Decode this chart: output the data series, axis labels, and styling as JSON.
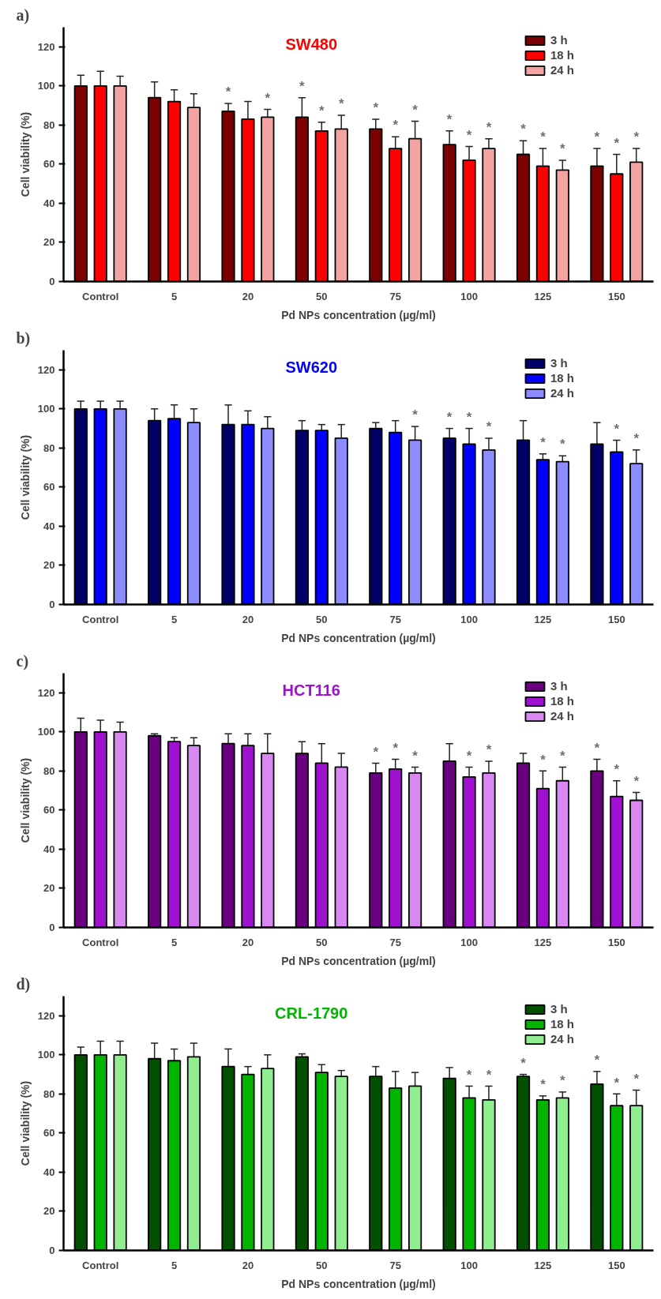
{
  "chart_data": [
    {
      "type": "bar",
      "title": "SW480",
      "annotations": [
        "a)"
      ],
      "xlabel": "Pd NPs concentration (µg/ml)",
      "ylabel": "Cell viability (%)",
      "categories": [
        "Control",
        "5",
        "20",
        "50",
        "75",
        "100",
        "125",
        "150"
      ],
      "ylim": [
        0,
        130
      ],
      "yticks": [
        0,
        20,
        40,
        60,
        80,
        100,
        120
      ],
      "grid": false,
      "legend": "top right",
      "series": [
        {
          "name": "3 h",
          "color": "#7b0000",
          "values": [
            100,
            94,
            87,
            84,
            78,
            70,
            65,
            59
          ],
          "errors": [
            5.5,
            8,
            4,
            10,
            5,
            7,
            7,
            9
          ],
          "value_labels": [
            null,
            null,
            "*",
            "*",
            "*",
            "*",
            "*",
            "*"
          ]
        },
        {
          "name": "18 h",
          "color": "#ff0000",
          "values": [
            100,
            92,
            83,
            77,
            68,
            62,
            59,
            55
          ],
          "errors": [
            7.5,
            6,
            9,
            4.5,
            6,
            7,
            9,
            10
          ],
          "value_labels": [
            null,
            null,
            null,
            "*",
            "*",
            "*",
            "*",
            "*"
          ]
        },
        {
          "name": "24 h",
          "color": "#f4a3a3",
          "values": [
            100,
            89,
            84,
            78,
            73,
            68,
            57,
            61
          ],
          "errors": [
            5,
            7,
            4,
            7,
            9,
            5,
            5,
            7
          ],
          "value_labels": [
            null,
            null,
            "*",
            "*",
            "*",
            "*",
            "*",
            "*"
          ]
        }
      ]
    },
    {
      "type": "bar",
      "title": "SW620",
      "annotations": [
        "b)"
      ],
      "xlabel": "Pd NPs concentration (µg/ml)",
      "ylabel": "Cell viability (%)",
      "categories": [
        "Control",
        "5",
        "20",
        "50",
        "75",
        "100",
        "125",
        "150"
      ],
      "ylim": [
        0,
        130
      ],
      "yticks": [
        0,
        20,
        40,
        60,
        80,
        100,
        120
      ],
      "grid": false,
      "legend": "top right",
      "series": [
        {
          "name": "3 h",
          "color": "#000066",
          "values": [
            100,
            94,
            92,
            89,
            90,
            85,
            84,
            82
          ],
          "errors": [
            4,
            6,
            10,
            5,
            3,
            5,
            10,
            11
          ],
          "value_labels": [
            null,
            null,
            null,
            null,
            null,
            "*",
            null,
            null
          ]
        },
        {
          "name": "18 h",
          "color": "#0000ff",
          "values": [
            100,
            95,
            92,
            89,
            88,
            82,
            74,
            78
          ],
          "errors": [
            4,
            7,
            7,
            3,
            6,
            8,
            3,
            6
          ],
          "value_labels": [
            null,
            null,
            null,
            null,
            null,
            "*",
            "*",
            "*"
          ]
        },
        {
          "name": "24 h",
          "color": "#8c8cff",
          "values": [
            100,
            93,
            90,
            85,
            84,
            79,
            73,
            72
          ],
          "errors": [
            4,
            7,
            6,
            7,
            7,
            6,
            3,
            7
          ],
          "value_labels": [
            null,
            null,
            null,
            null,
            "*",
            "*",
            "*",
            "*"
          ]
        }
      ]
    },
    {
      "type": "bar",
      "title": "HCT116",
      "annotations": [
        "c)"
      ],
      "xlabel": "Pd NPs concentration (µg/ml)",
      "ylabel": "Cell viability (%)",
      "categories": [
        "Control",
        "5",
        "20",
        "50",
        "75",
        "100",
        "125",
        "150"
      ],
      "ylim": [
        0,
        130
      ],
      "yticks": [
        0,
        20,
        40,
        60,
        80,
        100,
        120
      ],
      "grid": false,
      "legend": "top right",
      "series": [
        {
          "name": "3 h",
          "color": "#6a0080",
          "values": [
            100,
            98,
            94,
            89,
            79,
            85,
            84,
            80
          ],
          "errors": [
            7,
            1,
            5,
            6,
            5,
            9,
            5,
            6
          ],
          "value_labels": [
            null,
            null,
            null,
            null,
            "*",
            null,
            null,
            "*"
          ]
        },
        {
          "name": "18 h",
          "color": "#a010d0",
          "values": [
            100,
            95,
            93,
            84,
            81,
            77,
            71,
            67
          ],
          "errors": [
            6,
            2,
            6,
            10,
            5,
            5,
            9,
            8
          ],
          "value_labels": [
            null,
            null,
            null,
            null,
            "*",
            "*",
            "*",
            "*"
          ]
        },
        {
          "name": "24 h",
          "color": "#d888f0",
          "values": [
            100,
            93,
            89,
            82,
            79,
            79,
            75,
            65
          ],
          "errors": [
            5,
            4,
            10,
            7,
            3,
            6,
            7,
            4
          ],
          "value_labels": [
            null,
            null,
            null,
            null,
            "*",
            "*",
            "*",
            "*"
          ]
        }
      ]
    },
    {
      "type": "bar",
      "title": "CRL-1790",
      "annotations": [
        "d)"
      ],
      "xlabel": "Pd NPs concentration (µg/ml)",
      "ylabel": "Cell viability (%)",
      "categories": [
        "Control",
        "5",
        "20",
        "50",
        "75",
        "100",
        "125",
        "150"
      ],
      "ylim": [
        0,
        130
      ],
      "yticks": [
        0,
        20,
        40,
        60,
        80,
        100,
        120
      ],
      "grid": false,
      "legend": "top right",
      "series": [
        {
          "name": "3 h",
          "color": "#005000",
          "values": [
            100,
            98,
            94,
            99,
            89,
            88,
            89,
            85
          ],
          "errors": [
            4,
            8,
            9,
            1.5,
            5,
            5.5,
            1,
            6.5
          ],
          "value_labels": [
            null,
            null,
            null,
            null,
            null,
            null,
            "*",
            "*"
          ]
        },
        {
          "name": "18 h",
          "color": "#00b400",
          "values": [
            100,
            97,
            90,
            91,
            83,
            78,
            77,
            74
          ],
          "errors": [
            7,
            6,
            4,
            4,
            8.5,
            6,
            2,
            6
          ],
          "value_labels": [
            null,
            null,
            null,
            null,
            null,
            "*",
            "*",
            "*"
          ]
        },
        {
          "name": "24 h",
          "color": "#90ee90",
          "values": [
            100,
            99,
            93,
            89,
            84,
            77,
            78,
            74
          ],
          "errors": [
            7,
            7,
            7,
            3,
            7,
            7,
            3,
            8
          ],
          "value_labels": [
            null,
            null,
            null,
            null,
            null,
            "*",
            "*",
            "*"
          ]
        }
      ]
    }
  ]
}
